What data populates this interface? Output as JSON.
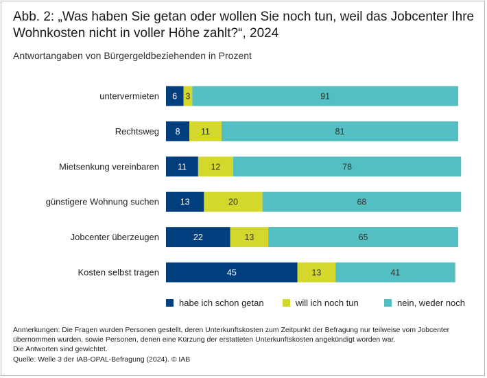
{
  "title": "Abb. 2: „Was haben Sie getan oder wollen Sie noch tun, weil das Jobcenter Ihre Wohnkosten nicht in voller Höhe zahlt?“, 2024",
  "subtitle": "Antwortangaben von Bürgergeldbeziehenden in Prozent",
  "notes": "Anmerkungen: Die Fragen wurden Personen gestellt, deren Unterkunftskosten zum Zeitpunkt der Befragung nur teilweise vom Jobcenter übernommen wurden, sowie Personen, denen eine Kürzung der erstatteten Unterkunftskosten angekündigt worden war.",
  "notes2": "Die Antworten sind gewichtet.",
  "source": "Quelle: Welle 3 der IAB-OPAL-Befragung (2024). © IAB",
  "colors": {
    "habe": "#003e7e",
    "will": "#d4d72c",
    "nein": "#53bfc2"
  },
  "chart_data": {
    "type": "bar",
    "orientation": "horizontal",
    "stacked": true,
    "categories": [
      "untervermieten",
      "Rechtsweg",
      "Mietsenkung vereinbaren",
      "günstigere Wohnung suchen",
      "Jobcenter überzeugen",
      "Kosten selbst tragen"
    ],
    "series": [
      {
        "name": "habe ich schon getan",
        "values": [
          6,
          8,
          11,
          13,
          22,
          45
        ]
      },
      {
        "name": "will ich noch tun",
        "values": [
          3,
          11,
          12,
          20,
          13,
          13
        ]
      },
      {
        "name": "nein, weder noch",
        "values": [
          91,
          81,
          78,
          68,
          65,
          41
        ]
      }
    ],
    "xlim": [
      0,
      100
    ],
    "legend_position": "bottom"
  }
}
